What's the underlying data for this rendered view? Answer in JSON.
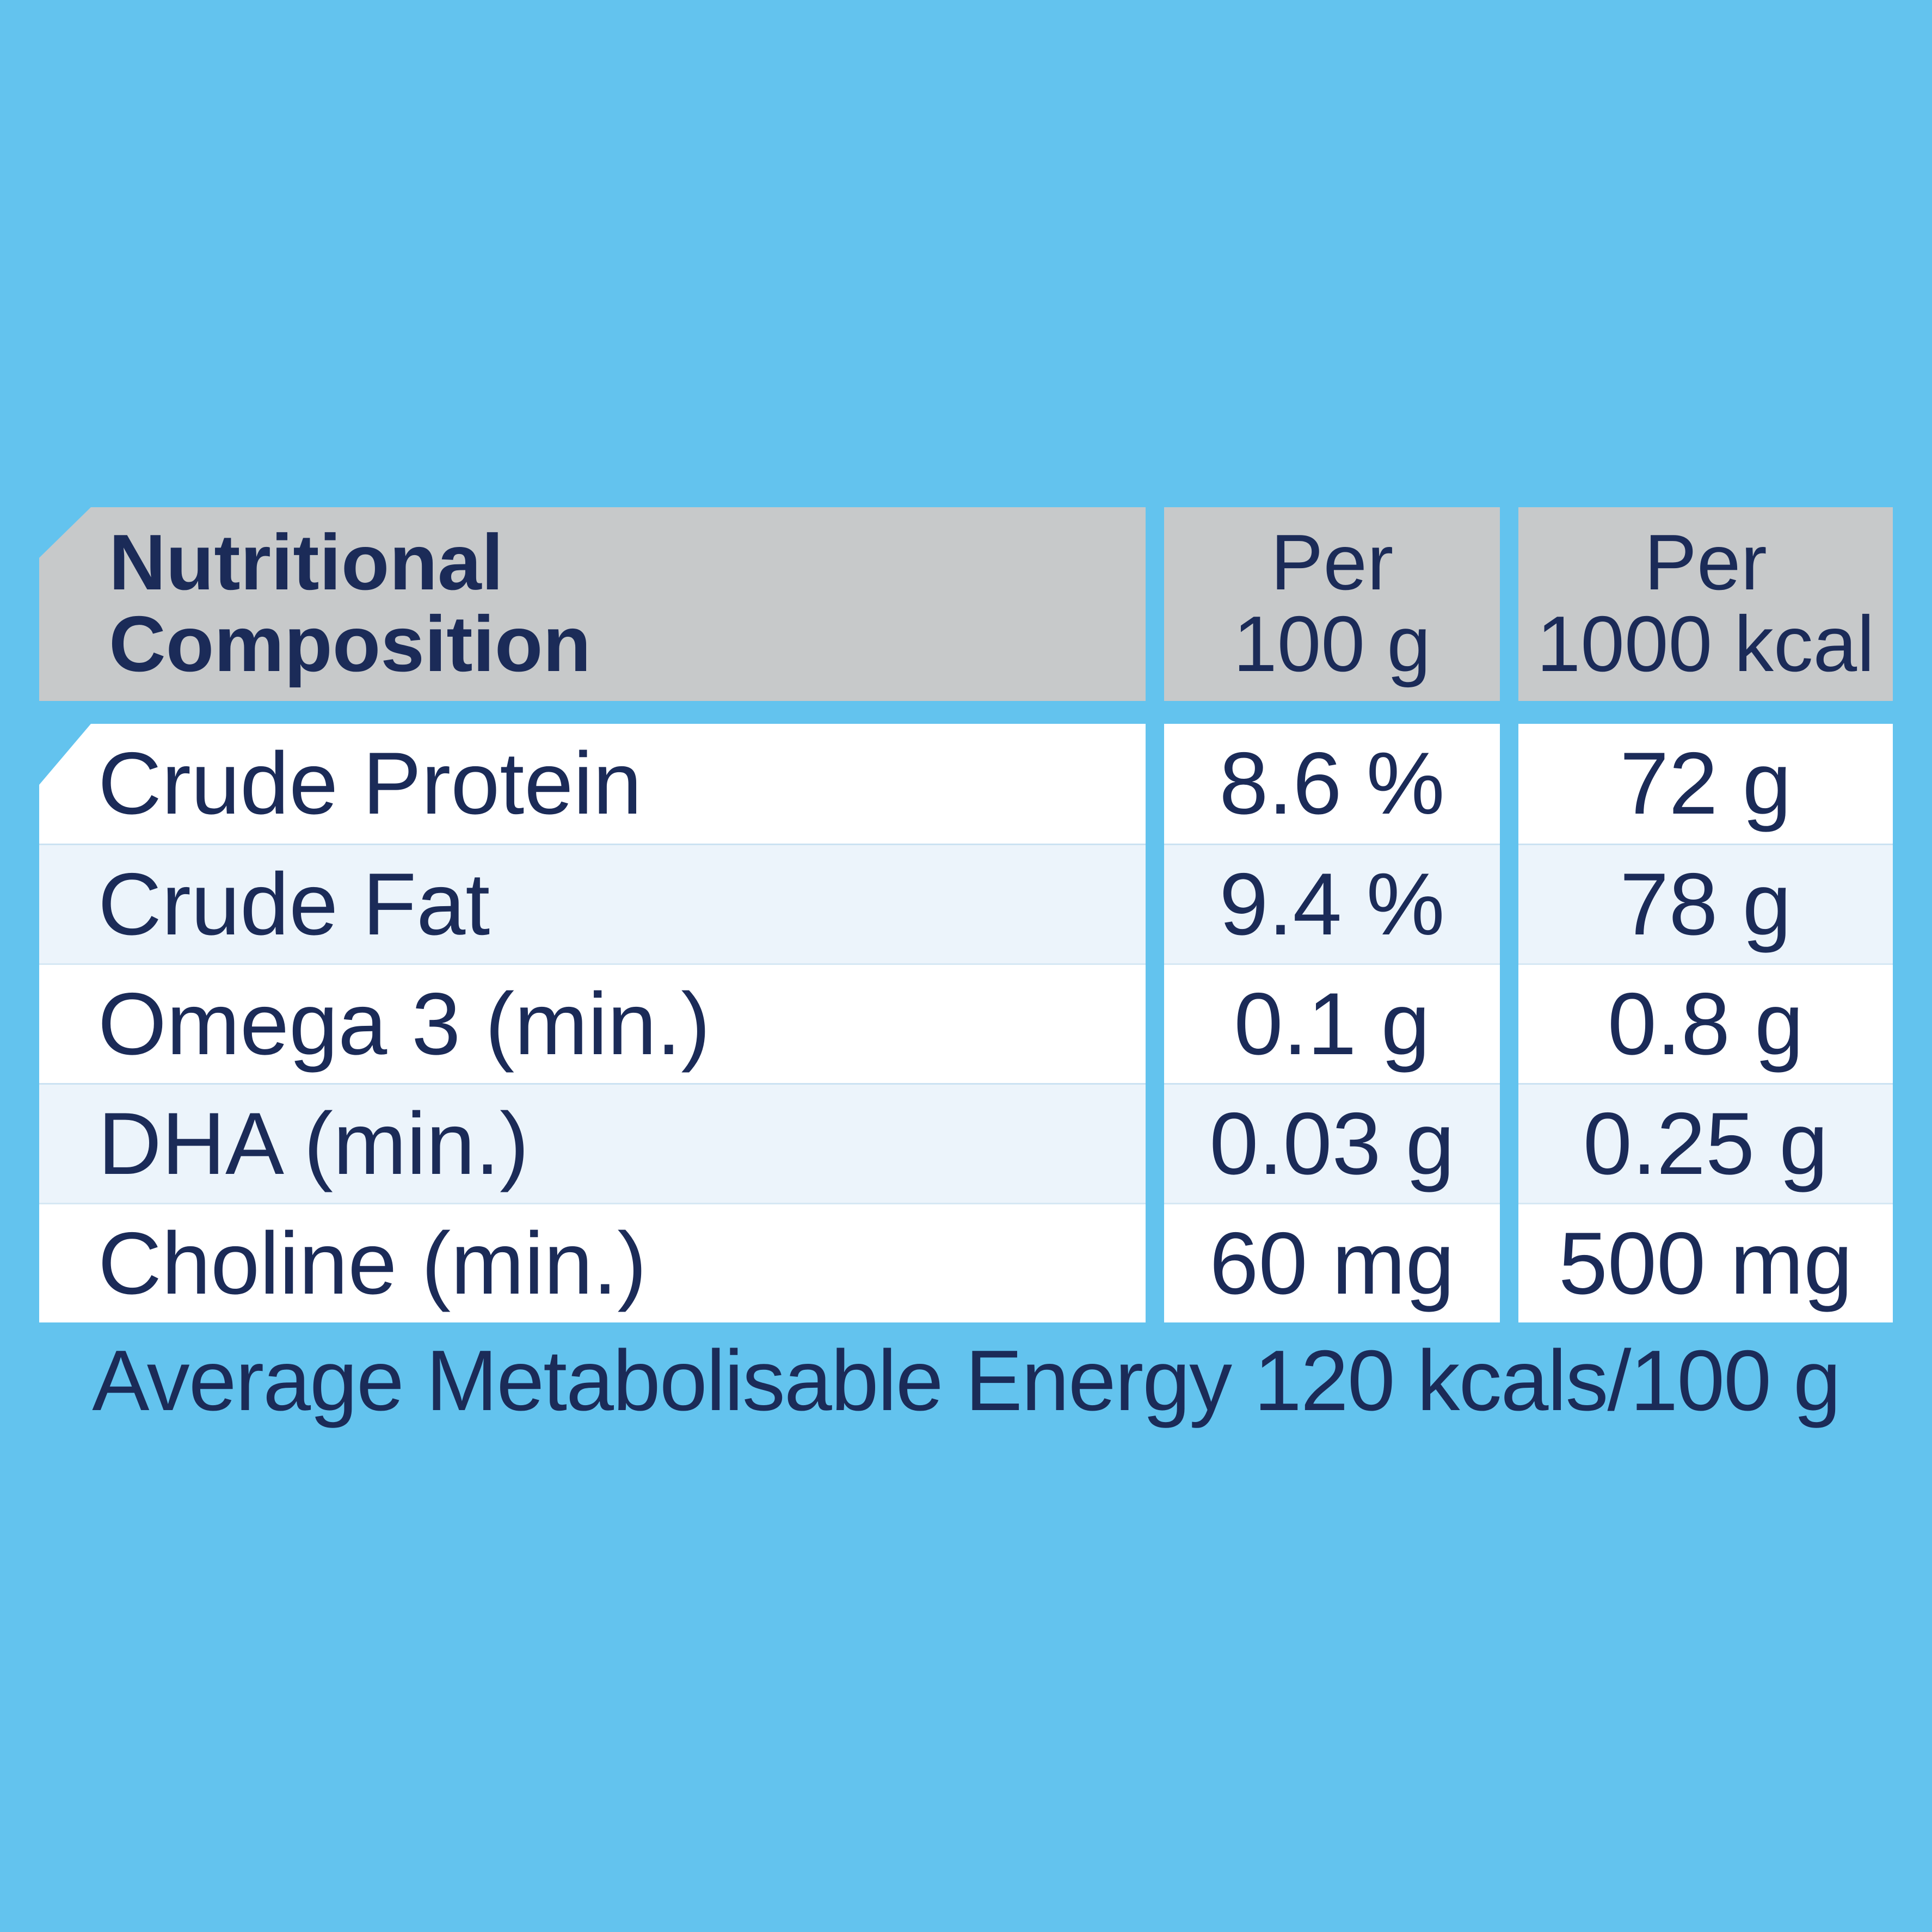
{
  "colors": {
    "background": "#63C3EE",
    "header_bg": "#C7C9CA",
    "row_white_bg": "#FFFFFF",
    "row_tint_bg": "#ECF4FB",
    "text_navy": "#1B2B58"
  },
  "table": {
    "header": {
      "title_line1": "Nutritional",
      "title_line2": "Composition",
      "per_100g_line1": "Per",
      "per_100g_line2": "100 g",
      "per_1000kcal_line1": "Per",
      "per_1000kcal_line2": "1000 kcal"
    },
    "rows": [
      {
        "label": "Crude Protein",
        "per_100g": "8.6 %",
        "per_1000kcal": "72 g"
      },
      {
        "label": "Crude Fat",
        "per_100g": "9.4 %",
        "per_1000kcal": "78 g"
      },
      {
        "label": "Omega 3 (min.)",
        "per_100g": "0.1 g",
        "per_1000kcal": "0.8 g"
      },
      {
        "label": "DHA (min.)",
        "per_100g": "0.03 g",
        "per_1000kcal": "0.25 g"
      },
      {
        "label": "Choline (min.)",
        "per_100g": "60 mg",
        "per_1000kcal": "500 mg"
      }
    ]
  },
  "footer": {
    "energy_note": "Average Metabolisable Energy 120 kcals/100 g"
  }
}
